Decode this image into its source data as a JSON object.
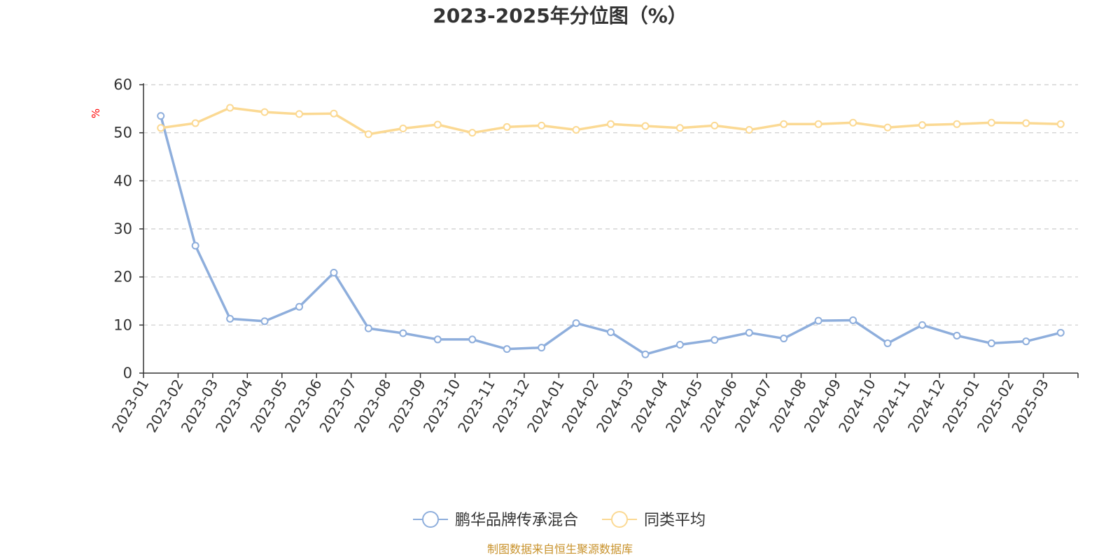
{
  "chart_data": {
    "type": "line",
    "title": "2023-2025年分位图（%）",
    "ylabel": "%",
    "xlabel": "",
    "ylim": [
      0,
      60
    ],
    "yticks": [
      0,
      10,
      20,
      30,
      40,
      50,
      60
    ],
    "grid": true,
    "legend_position": "bottom",
    "categories": [
      "2023-01",
      "2023-02",
      "2023-03",
      "2023-04",
      "2023-05",
      "2023-06",
      "2023-07",
      "2023-08",
      "2023-09",
      "2023-10",
      "2023-11",
      "2023-12",
      "2024-01",
      "2024-02",
      "2024-03",
      "2024-04",
      "2024-05",
      "2024-06",
      "2024-07",
      "2024-08",
      "2024-09",
      "2024-10",
      "2024-11",
      "2024-12",
      "2025-01",
      "2025-02",
      "2025-03"
    ],
    "series": [
      {
        "name": "鹏华品牌传承混合",
        "color": "#8eaedc",
        "values": [
          53.5,
          26.5,
          11.3,
          10.8,
          13.8,
          20.9,
          9.3,
          8.3,
          7.0,
          7.0,
          5.0,
          5.3,
          10.4,
          8.5,
          3.9,
          5.9,
          6.9,
          8.4,
          7.2,
          10.9,
          11.0,
          6.2,
          10.0,
          7.8,
          6.2,
          6.6,
          8.4
        ]
      },
      {
        "name": "同类平均",
        "color": "#fbd993",
        "values": [
          51.0,
          52.0,
          55.2,
          54.3,
          53.9,
          54.0,
          49.7,
          50.9,
          51.7,
          50.0,
          51.2,
          51.5,
          50.6,
          51.8,
          51.4,
          51.0,
          51.5,
          50.6,
          51.8,
          51.8,
          52.1,
          51.1,
          51.6,
          51.8,
          52.1,
          52.0,
          51.8
        ]
      }
    ]
  },
  "source_note": "制图数据来自恒生聚源数据库"
}
